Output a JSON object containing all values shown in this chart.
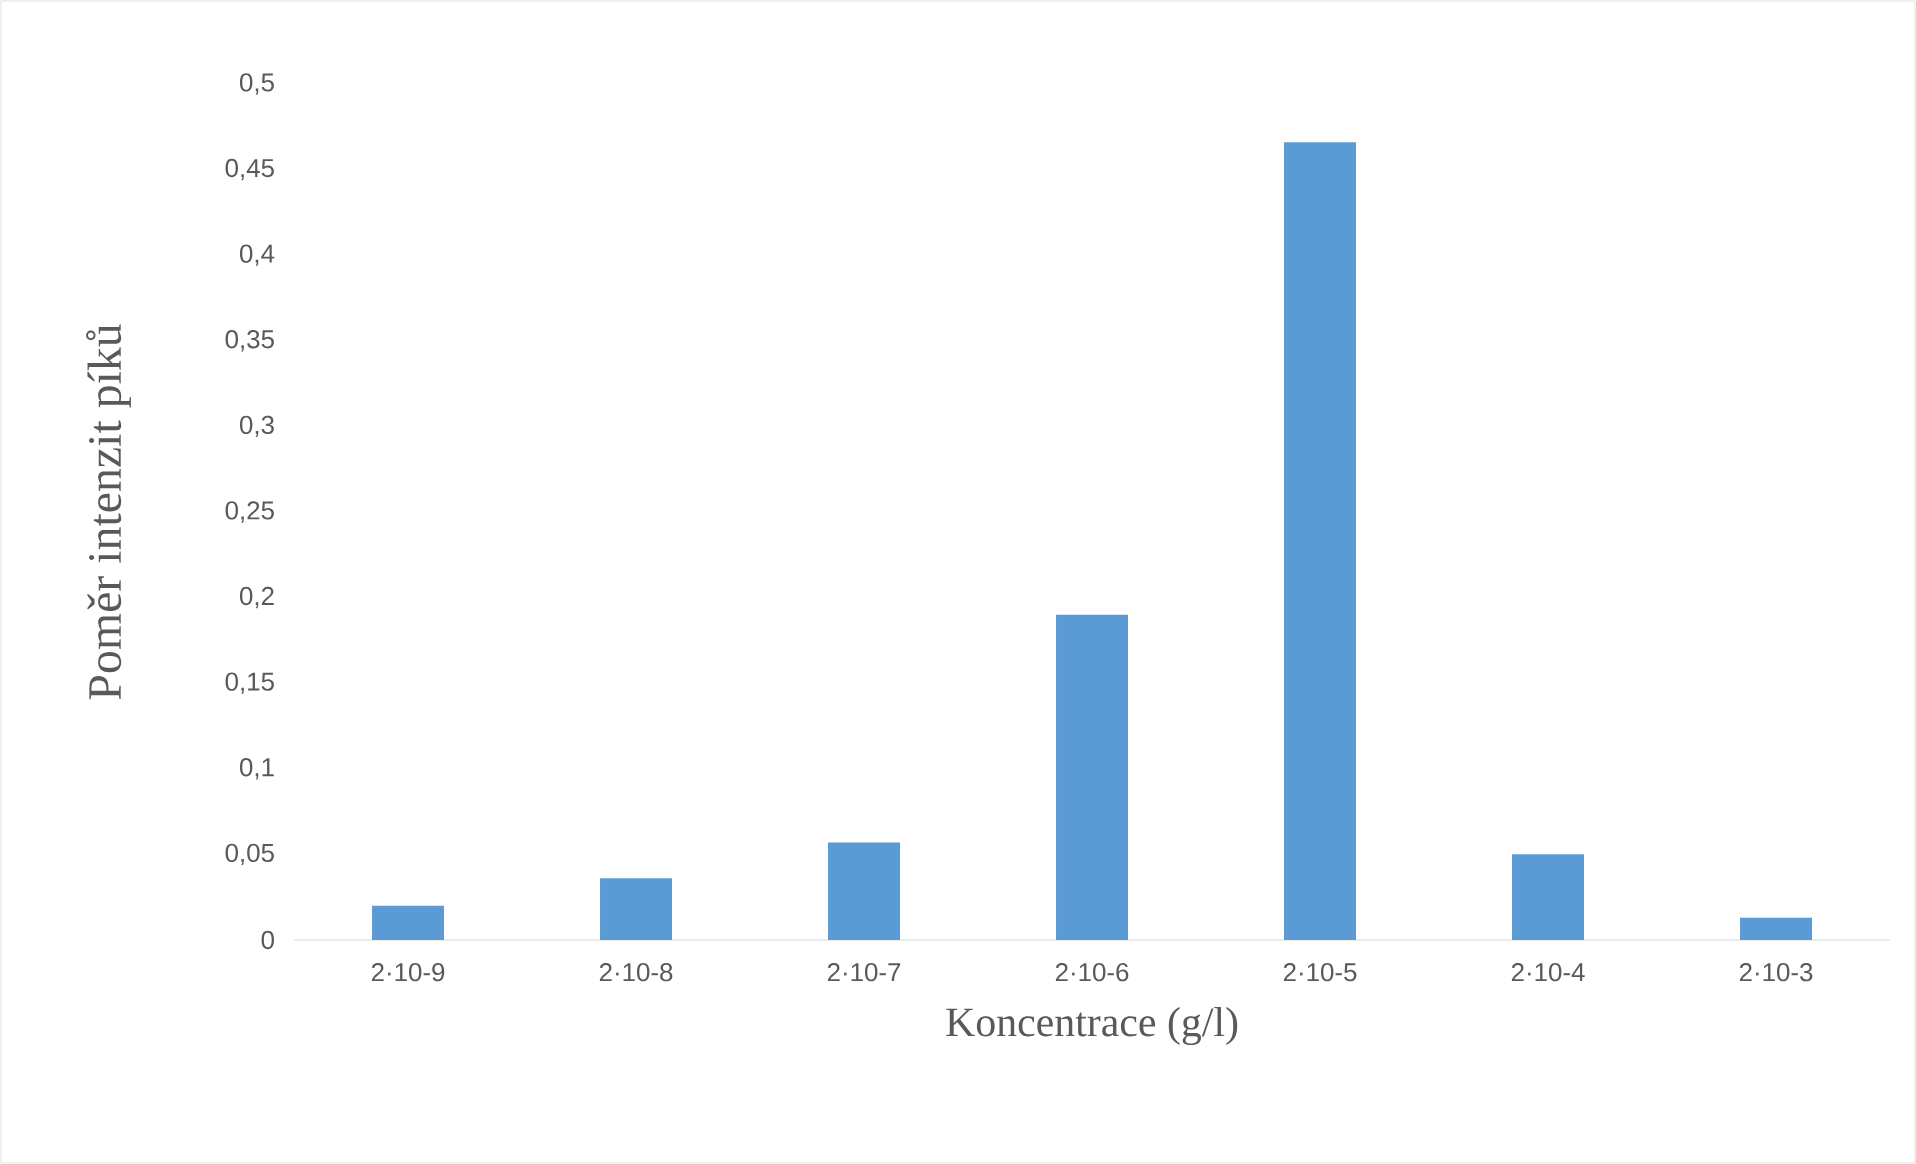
{
  "chart_data": {
    "type": "bar",
    "xlabel": "Koncentrace  (g/l)",
    "ylabel": "Poměr  intenzit  píků",
    "categories": [
      "2·10-9",
      "2·10-8",
      "2·10-7",
      "2·10-6",
      "2·10-5",
      "2·10-4",
      "2·10-3"
    ],
    "values": [
      0.02,
      0.036,
      0.057,
      0.19,
      0.466,
      0.05,
      0.013
    ],
    "color": "#5b9bd5",
    "ylim": [
      0,
      0.5
    ],
    "yticks": [
      {
        "value": 0,
        "label": "0"
      },
      {
        "value": 0.05,
        "label": "0,05"
      },
      {
        "value": 0.1,
        "label": "0,1"
      },
      {
        "value": 0.15,
        "label": "0,15"
      },
      {
        "value": 0.2,
        "label": "0,2"
      },
      {
        "value": 0.25,
        "label": "0,25"
      },
      {
        "value": 0.3,
        "label": "0,3"
      },
      {
        "value": 0.35,
        "label": "0,35"
      },
      {
        "value": 0.4,
        "label": "0,4"
      },
      {
        "value": 0.45,
        "label": "0,45"
      },
      {
        "value": 0.5,
        "label": "0,5"
      }
    ]
  }
}
